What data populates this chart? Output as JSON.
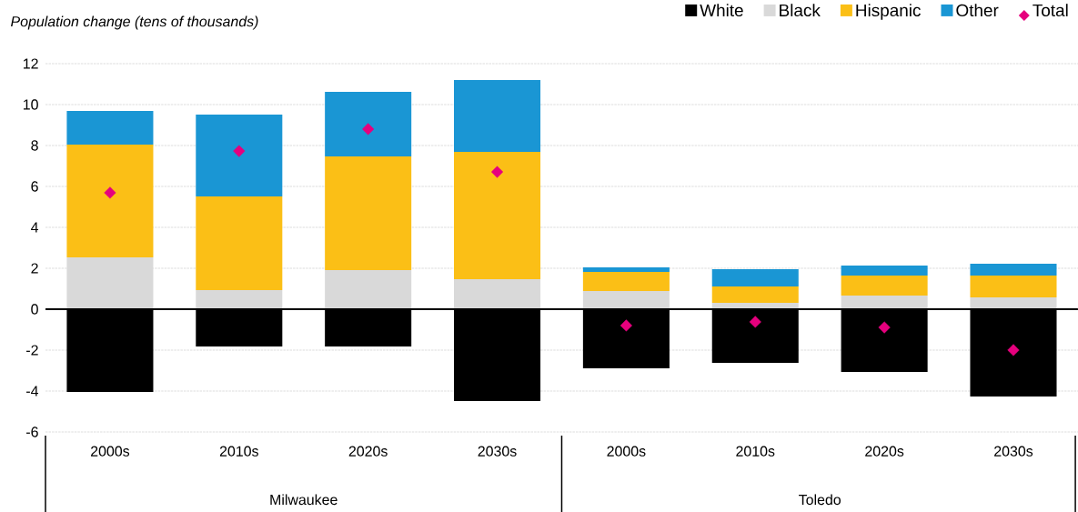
{
  "chart_data": {
    "type": "bar",
    "stacked": true,
    "ylabel": "Population change (tens of thousands)",
    "categories": [
      "2000s",
      "2010s",
      "2020s",
      "2030s",
      "2000s",
      "2010s",
      "2020s",
      "2030s"
    ],
    "annotations": [
      "Milwaukee",
      "Toledo"
    ],
    "series": [
      {
        "name": "White",
        "color": "#000000",
        "values": [
          -4.04,
          -1.82,
          -1.82,
          -4.49,
          -2.89,
          -2.62,
          -3.07,
          -4.27
        ]
      },
      {
        "name": "Black",
        "color": "#d9d9d9",
        "values": [
          2.53,
          0.93,
          1.91,
          1.47,
          0.89,
          0.31,
          0.67,
          0.58
        ]
      },
      {
        "name": "Hispanic",
        "color": "#fbbf16",
        "values": [
          5.51,
          4.58,
          5.56,
          6.22,
          0.93,
          0.8,
          0.97,
          1.06
        ]
      },
      {
        "name": "Other",
        "color": "#1a96d4",
        "values": [
          1.65,
          4.0,
          3.15,
          3.51,
          0.22,
          0.85,
          0.49,
          0.58
        ]
      },
      {
        "name": "Total",
        "type": "scatter",
        "marker": "diamond",
        "color": "#e6007e",
        "values": [
          5.69,
          7.73,
          8.8,
          6.71,
          -0.8,
          -0.62,
          -0.89,
          -2.0
        ]
      }
    ],
    "ylim": [
      -6,
      12
    ],
    "yticks": [
      -6,
      -4,
      -2,
      0,
      2,
      4,
      6,
      8,
      10,
      12
    ],
    "grid": "y",
    "legend": "top right"
  }
}
